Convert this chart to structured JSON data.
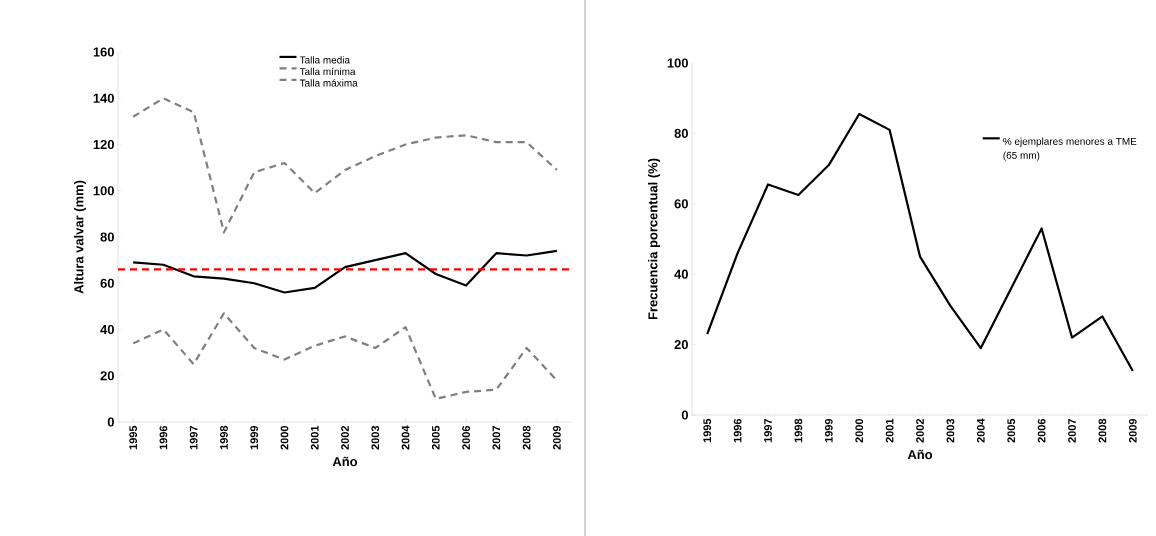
{
  "chart_data": [
    {
      "type": "line",
      "ylabel": "Altura valvar (mm)",
      "xlabel": "Año",
      "categories": [
        "1995",
        "1996",
        "1997",
        "1998",
        "1999",
        "2000",
        "2001",
        "2002",
        "2003",
        "2004",
        "2005",
        "2006",
        "2007",
        "2008",
        "2009"
      ],
      "series": [
        {
          "name": "Talla media",
          "color": "#000000",
          "line_style": "solid",
          "values": [
            69,
            68,
            63,
            62,
            60,
            56,
            58,
            67,
            70,
            73,
            64,
            59,
            73,
            72,
            74
          ]
        },
        {
          "name": "Talla mínima",
          "color": "#7f7f7f",
          "line_style": "dashed",
          "values": [
            34,
            40,
            25,
            47,
            32,
            27,
            33,
            37,
            32,
            41,
            10,
            13,
            14,
            32,
            18
          ]
        },
        {
          "name": "Talla máxima",
          "color": "#7f7f7f",
          "line_style": "dashed",
          "values": [
            132,
            140,
            134,
            82,
            108,
            112,
            99,
            109,
            115,
            120,
            123,
            124,
            121,
            121,
            109
          ]
        }
      ],
      "ylim": [
        0,
        160
      ],
      "yticks": [
        0,
        20,
        40,
        60,
        80,
        100,
        120,
        140,
        160
      ],
      "ref_lines": [
        {
          "axis": "y",
          "value": 66,
          "color": "#ff0000",
          "line_style": "dashed"
        }
      ],
      "grid": false,
      "legend": "top"
    },
    {
      "type": "line",
      "ylabel": "Frecuencia porcentual (%)",
      "xlabel": "Año",
      "categories": [
        "1995",
        "1996",
        "1997",
        "1998",
        "1999",
        "2000",
        "2001",
        "2002",
        "2003",
        "2004",
        "2005",
        "2006",
        "2007",
        "2008",
        "2009"
      ],
      "series": [
        {
          "name": "% ejemplares menores a TME (65 mm)",
          "color": "#000000",
          "line_style": "solid",
          "values": [
            23,
            46,
            65.5,
            62.5,
            71,
            85.5,
            81,
            45,
            31,
            19,
            36,
            53,
            22,
            28,
            12.5
          ]
        }
      ],
      "ylim": [
        0,
        100
      ],
      "yticks": [
        0,
        20,
        40,
        60,
        80,
        100
      ],
      "grid": false,
      "legend": "right"
    }
  ]
}
